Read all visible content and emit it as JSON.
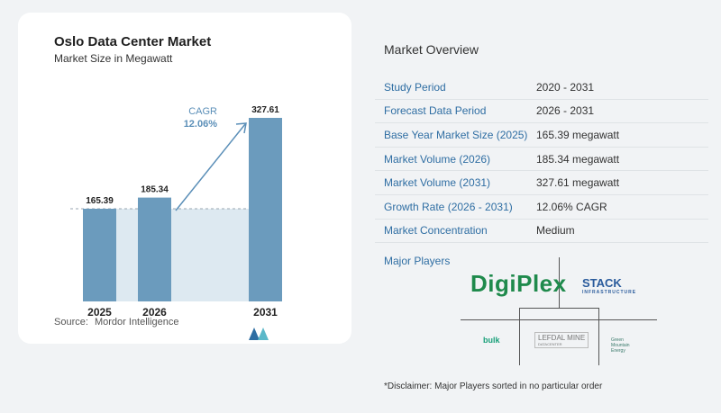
{
  "chart": {
    "title": "Oslo Data Center Market",
    "subtitle": "Market Size in Megawatt",
    "cagr_label": "CAGR",
    "cagr_value": "12.06%",
    "source_label": "Source:",
    "source_name": "Mordor Intelligence"
  },
  "chart_data": {
    "type": "bar",
    "title": "Oslo Data Center Market",
    "subtitle": "Market Size in Megawatt",
    "categories": [
      "2025",
      "2026",
      "2031"
    ],
    "values": [
      165.39,
      185.34,
      327.61
    ],
    "value_labels": [
      "165.39",
      "185.34",
      "327.61"
    ],
    "ylim": [
      0,
      327.61
    ],
    "grid": false,
    "annotation": "CAGR 12.06%",
    "colors": {
      "bar": "#6b9bbd",
      "baseline_band": "#dde9f1",
      "arrow": "#5b8fb8",
      "cagr_text": "#5b8fb8"
    }
  },
  "overview": {
    "title": "Market Overview",
    "rows": [
      {
        "key": "Study Period",
        "value": "2020 - 2031"
      },
      {
        "key": "Forecast Data Period",
        "value": "2026 - 2031"
      },
      {
        "key": "Base Year Market Size (2025)",
        "value": "165.39 megawatt"
      },
      {
        "key": "Market Volume (2026)",
        "value": "185.34 megawatt"
      },
      {
        "key": "Market Volume (2031)",
        "value": "327.61 megawatt"
      },
      {
        "key": "Growth Rate (2026 - 2031)",
        "value": "12.06% CAGR"
      },
      {
        "key": "Market Concentration",
        "value": "Medium"
      }
    ],
    "players_label": "Major Players",
    "players": {
      "digiplex": "DigiPlex",
      "stack": "STACK",
      "stack_sub": "INFRASTRUCTURE",
      "bulk": "bulk",
      "lefdal": "LEFDAL MINE",
      "lefdal_sub": "DATACENTER",
      "green_1": "Green",
      "green_2": "Mountain",
      "green_3": "Energy"
    },
    "disclaimer": "*Disclaimer: Major Players sorted in no particular order"
  }
}
